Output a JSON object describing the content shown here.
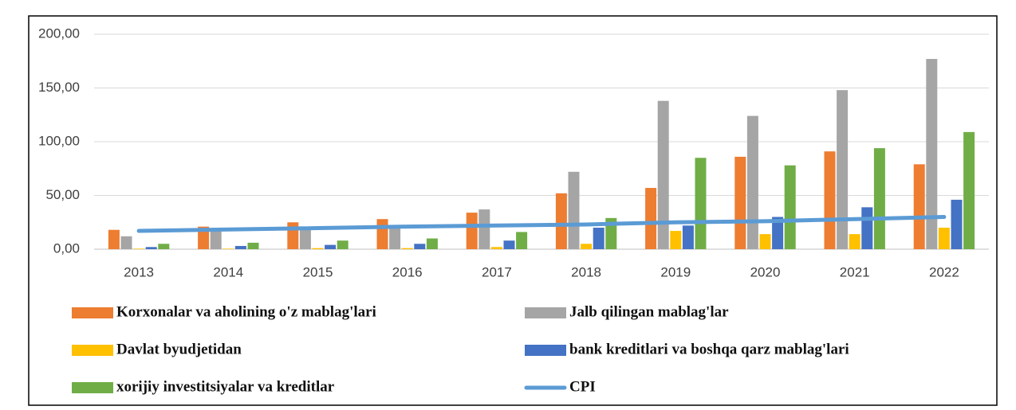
{
  "chart_data": {
    "type": "bar",
    "categories": [
      "2013",
      "2014",
      "2015",
      "2016",
      "2017",
      "2018",
      "2019",
      "2020",
      "2021",
      "2022"
    ],
    "series": [
      {
        "name": "Korxonalar va aholining o'z mablag'lari",
        "color": "#ed7d31",
        "values": [
          18,
          21,
          25,
          28,
          34,
          52,
          57,
          86,
          91,
          79
        ]
      },
      {
        "name": "Jalb qilingan mablag'lar",
        "color": "#a5a5a5",
        "values": [
          12,
          17,
          19,
          20,
          37,
          72,
          138,
          124,
          148,
          177
        ]
      },
      {
        "name": "Davlat byudjetidan",
        "color": "#ffc000",
        "values": [
          0.5,
          0.5,
          1,
          1,
          2,
          5,
          17,
          14,
          14,
          20
        ]
      },
      {
        "name": "bank kreditlari va boshqa qarz mablag'lari",
        "color": "#4472c4",
        "values": [
          2,
          3,
          4,
          5,
          8,
          20,
          22,
          30,
          39,
          46
        ]
      },
      {
        "name": "xorijiy investitsiyalar va kreditlar",
        "color": "#70ad47",
        "values": [
          5,
          6,
          8,
          10,
          16,
          29,
          85,
          78,
          94,
          109
        ]
      },
      {
        "name": "CPI",
        "color": "#5b9bd5",
        "type": "line",
        "values": [
          17,
          18.3,
          19.6,
          21,
          22,
          23,
          25,
          26,
          28,
          30
        ]
      }
    ],
    "ylim": [
      0,
      200
    ],
    "yticks": [
      {
        "value": 0,
        "label": "0,00"
      },
      {
        "value": 50,
        "label": "50,00"
      },
      {
        "value": 100,
        "label": "100,00"
      },
      {
        "value": 150,
        "label": "150,00"
      },
      {
        "value": 200,
        "label": "200,00"
      }
    ],
    "grid": true,
    "legend": "bottom"
  }
}
